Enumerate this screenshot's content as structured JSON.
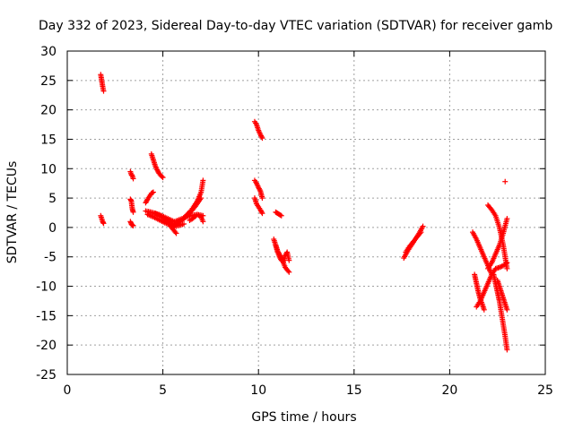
{
  "chart_data": {
    "type": "scatter",
    "title": "Day 332 of 2023, Sidereal Day-to-day VTEC variation (SDTVAR) for receiver gamb",
    "xlabel": "GPS time / hours",
    "ylabel": "SDTVAR / TECUs",
    "xlim": [
      0,
      25
    ],
    "ylim": [
      -25,
      30
    ],
    "xticks": [
      0,
      5,
      10,
      15,
      20,
      25
    ],
    "yticks": [
      -25,
      -20,
      -15,
      -10,
      -5,
      0,
      5,
      10,
      15,
      20,
      25,
      30
    ],
    "grid": true,
    "marker": "+",
    "color": "#ff0000",
    "segments": [
      {
        "x": [
          1.75,
          1.8,
          1.85,
          1.9
        ],
        "y": [
          26,
          25,
          24,
          23.2
        ]
      },
      {
        "x": [
          1.75,
          1.8,
          1.85,
          1.9
        ],
        "y": [
          2,
          1.5,
          1.0,
          0.7
        ]
      },
      {
        "x": [
          3.3,
          3.35,
          3.4,
          3.45
        ],
        "y": [
          9.5,
          9,
          8.8,
          8.3
        ]
      },
      {
        "x": [
          3.3,
          3.35,
          3.4,
          3.45
        ],
        "y": [
          4.8,
          4.5,
          3.2,
          2.6
        ]
      },
      {
        "x": [
          3.3,
          3.35,
          3.4,
          3.45
        ],
        "y": [
          1.0,
          0.6,
          0.4,
          0.3
        ]
      },
      {
        "x": [
          4.1,
          4.2,
          4.3,
          4.4,
          4.5
        ],
        "y": [
          4.2,
          4.8,
          5.3,
          5.8,
          6.0
        ]
      },
      {
        "x": [
          4.4,
          4.5,
          4.6,
          4.7,
          4.8,
          4.9,
          5.0
        ],
        "y": [
          12.5,
          11.5,
          10.5,
          9.8,
          9.2,
          8.8,
          8.5
        ]
      },
      {
        "x": [
          4.1,
          4.4,
          4.8,
          5.2,
          5.6,
          6.0,
          6.4,
          6.8,
          7.1
        ],
        "y": [
          2.8,
          2.6,
          2.2,
          1.6,
          1.0,
          1.5,
          2.0,
          2.2,
          2.0
        ]
      },
      {
        "x": [
          4.2,
          4.5,
          4.8,
          5.1,
          5.4,
          5.7
        ],
        "y": [
          2.2,
          1.8,
          1.3,
          0.8,
          0.4,
          0.2
        ]
      },
      {
        "x": [
          4.6,
          4.9,
          5.2,
          5.5,
          5.8,
          6.1
        ],
        "y": [
          2.4,
          1.9,
          1.2,
          0.6,
          0.3,
          0.6
        ]
      },
      {
        "x": [
          5.4,
          5.5,
          5.6,
          5.7
        ],
        "y": [
          0.2,
          -0.2,
          -0.6,
          -1.0
        ]
      },
      {
        "x": [
          5.6,
          5.9,
          6.2,
          6.5,
          6.8,
          7.0,
          7.1
        ],
        "y": [
          0.3,
          1.0,
          2.0,
          3.0,
          4.5,
          6.0,
          8.0
        ]
      },
      {
        "x": [
          5.8,
          6.1,
          6.4,
          6.7,
          7.0
        ],
        "y": [
          0.8,
          1.5,
          2.4,
          3.6,
          5.0
        ]
      },
      {
        "x": [
          6.4,
          6.6,
          6.8,
          7.0,
          7.1
        ],
        "y": [
          1.2,
          1.6,
          2.2,
          1.8,
          1.0
        ]
      },
      {
        "x": [
          9.8,
          9.9,
          10.0,
          10.1,
          10.2
        ],
        "y": [
          18,
          17.5,
          16.5,
          15.8,
          15.2
        ]
      },
      {
        "x": [
          9.8,
          9.9,
          10.0,
          10.1,
          10.2
        ],
        "y": [
          8.0,
          7.5,
          6.8,
          6.2,
          5.0
        ]
      },
      {
        "x": [
          9.8,
          9.9,
          10.0,
          10.1,
          10.2
        ],
        "y": [
          5.0,
          4.0,
          3.5,
          3.0,
          2.4
        ]
      },
      {
        "x": [
          10.9,
          11.0,
          11.1,
          11.2
        ],
        "y": [
          2.6,
          2.4,
          2.2,
          2.0
        ]
      },
      {
        "x": [
          10.8,
          10.9,
          11.0,
          11.1,
          11.2,
          11.3,
          11.4,
          11.5,
          11.6
        ],
        "y": [
          -2.0,
          -3.0,
          -4.0,
          -4.6,
          -5.2,
          -6.0,
          -6.8,
          -7.2,
          -7.6
        ]
      },
      {
        "x": [
          10.9,
          11.0,
          11.1,
          11.2,
          11.3,
          11.4,
          11.5,
          11.6
        ],
        "y": [
          -3.0,
          -4.2,
          -5.0,
          -5.6,
          -5.8,
          -4.8,
          -4.2,
          -5.6
        ]
      },
      {
        "x": [
          17.6,
          17.8,
          18.0,
          18.2,
          18.4,
          18.6
        ],
        "y": [
          -5.2,
          -4.0,
          -3.0,
          -2.0,
          -1.0,
          0.2
        ]
      },
      {
        "x": [
          17.7,
          17.9,
          18.1,
          18.3,
          18.5
        ],
        "y": [
          -4.2,
          -3.2,
          -2.4,
          -1.6,
          -0.8
        ]
      },
      {
        "x": [
          21.2,
          21.4,
          21.6,
          21.8,
          22.0,
          22.2
        ],
        "y": [
          -0.8,
          -2.0,
          -3.5,
          -5.0,
          -6.5,
          -8.0
        ]
      },
      {
        "x": [
          21.3,
          21.4,
          21.5,
          21.6,
          21.7,
          21.8
        ],
        "y": [
          -8.0,
          -9.5,
          -11.0,
          -12.2,
          -13.0,
          -14.0
        ]
      },
      {
        "x": [
          21.4,
          21.6,
          21.8,
          22.0,
          22.2,
          22.4,
          22.6,
          22.8,
          23.0
        ],
        "y": [
          -13.5,
          -12.5,
          -11.0,
          -9.5,
          -8.0,
          -7.0,
          -6.8,
          -6.5,
          -6.0
        ]
      },
      {
        "x": [
          22.0,
          22.2,
          22.4,
          22.6,
          22.8,
          23.0
        ],
        "y": [
          -7.0,
          -6.0,
          -4.5,
          -3.0,
          -1.0,
          1.5
        ]
      },
      {
        "x": [
          22.0,
          22.2,
          22.4,
          22.6,
          22.8,
          23.0
        ],
        "y": [
          3.8,
          3.0,
          2.0,
          0.0,
          -3.0,
          -7.0
        ]
      },
      {
        "x": [
          22.3,
          22.4,
          22.5,
          22.6,
          22.7,
          22.8,
          22.9,
          23.0
        ],
        "y": [
          -8.0,
          -9.5,
          -11.0,
          -12.5,
          -14.5,
          -16.5,
          -18.5,
          -20.8
        ]
      },
      {
        "x": [
          22.5,
          22.6,
          22.7,
          22.8,
          22.9,
          23.0
        ],
        "y": [
          -9.0,
          -10.0,
          -11.0,
          -12.0,
          -13.0,
          -14.0
        ]
      },
      {
        "x": [
          22.9
        ],
        "y": [
          7.8
        ]
      }
    ]
  }
}
